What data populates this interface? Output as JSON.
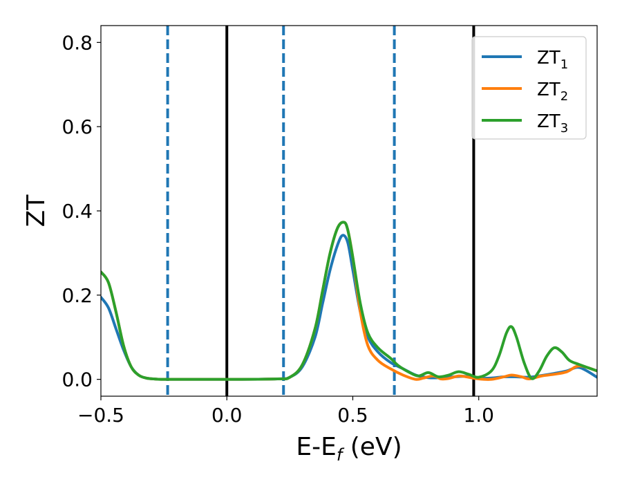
{
  "chart_data": {
    "type": "line",
    "xlabel": {
      "main": "E-E",
      "sub": "f",
      "unit": " (eV)"
    },
    "ylabel": "ZT",
    "xlim": [
      -0.5,
      1.47
    ],
    "ylim": [
      -0.04,
      0.84
    ],
    "x_ticks": [
      {
        "value": -0.5,
        "label": "−0.5"
      },
      {
        "value": 0.0,
        "label": "0.0"
      },
      {
        "value": 0.5,
        "label": "0.5"
      },
      {
        "value": 1.0,
        "label": "1.0"
      }
    ],
    "y_ticks": [
      {
        "value": 0.0,
        "label": "0.0"
      },
      {
        "value": 0.2,
        "label": "0.2"
      },
      {
        "value": 0.4,
        "label": "0.4"
      },
      {
        "value": 0.6,
        "label": "0.6"
      },
      {
        "value": 0.8,
        "label": "0.8"
      }
    ],
    "vlines": [
      {
        "x": -0.235,
        "color": "#1f77b4",
        "style": "dashed"
      },
      {
        "x": 0.0,
        "color": "#000000",
        "style": "solid"
      },
      {
        "x": 0.225,
        "color": "#1f77b4",
        "style": "dashed"
      },
      {
        "x": 0.665,
        "color": "#1f77b4",
        "style": "dashed"
      },
      {
        "x": 0.98,
        "color": "#000000",
        "style": "solid"
      }
    ],
    "legend_position": "top-right",
    "grid": false,
    "series": [
      {
        "name": "ZT",
        "sub": "1",
        "color": "#1f77b4",
        "x": [
          -0.5,
          -0.47,
          -0.44,
          -0.41,
          -0.38,
          -0.35,
          -0.32,
          -0.29,
          -0.26,
          -0.2,
          0.0,
          0.2,
          0.25,
          0.3,
          0.35,
          0.38,
          0.41,
          0.44,
          0.46,
          0.48,
          0.5,
          0.53,
          0.56,
          0.6,
          0.65,
          0.7,
          0.75,
          0.8,
          0.85,
          0.9,
          0.95,
          1.0,
          1.05,
          1.1,
          1.15,
          1.2,
          1.25,
          1.3,
          1.35,
          1.4,
          1.47
        ],
        "y": [
          0.195,
          0.17,
          0.12,
          0.07,
          0.03,
          0.01,
          0.003,
          0.001,
          0.0,
          0.0,
          0.0,
          0.001,
          0.005,
          0.03,
          0.1,
          0.18,
          0.26,
          0.32,
          0.342,
          0.325,
          0.26,
          0.16,
          0.1,
          0.065,
          0.04,
          0.025,
          0.01,
          0.004,
          0.004,
          0.006,
          0.007,
          0.003,
          0.003,
          0.006,
          0.006,
          0.005,
          0.009,
          0.014,
          0.02,
          0.028,
          0.005
        ]
      },
      {
        "name": "ZT",
        "sub": "2",
        "color": "#ff7f0e",
        "x": [
          -0.5,
          -0.47,
          -0.44,
          -0.41,
          -0.38,
          -0.35,
          -0.32,
          -0.29,
          -0.26,
          -0.2,
          0.0,
          0.2,
          0.25,
          0.3,
          0.35,
          0.38,
          0.41,
          0.44,
          0.465,
          0.48,
          0.5,
          0.53,
          0.56,
          0.6,
          0.65,
          0.7,
          0.75,
          0.78,
          0.82,
          0.85,
          0.88,
          0.92,
          0.95,
          1.0,
          1.05,
          1.1,
          1.13,
          1.17,
          1.2,
          1.25,
          1.3,
          1.35,
          1.4,
          1.47
        ],
        "y": [
          0.255,
          0.23,
          0.16,
          0.08,
          0.03,
          0.01,
          0.003,
          0.001,
          0.0,
          0.0,
          0.0,
          0.001,
          0.005,
          0.035,
          0.12,
          0.21,
          0.3,
          0.36,
          0.373,
          0.355,
          0.29,
          0.16,
          0.08,
          0.045,
          0.025,
          0.01,
          0.0,
          0.003,
          0.008,
          0.001,
          0.002,
          0.008,
          0.006,
          0.001,
          0.0,
          0.006,
          0.01,
          0.006,
          0.001,
          0.008,
          0.012,
          0.018,
          0.032,
          0.02
        ]
      },
      {
        "name": "ZT",
        "sub": "3",
        "color": "#2ca02c",
        "x": [
          -0.5,
          -0.47,
          -0.44,
          -0.41,
          -0.38,
          -0.35,
          -0.32,
          -0.29,
          -0.26,
          -0.2,
          0.0,
          0.2,
          0.25,
          0.3,
          0.35,
          0.38,
          0.41,
          0.44,
          0.465,
          0.48,
          0.5,
          0.53,
          0.56,
          0.6,
          0.65,
          0.68,
          0.72,
          0.76,
          0.8,
          0.84,
          0.88,
          0.92,
          0.96,
          1.0,
          1.05,
          1.08,
          1.11,
          1.13,
          1.15,
          1.18,
          1.21,
          1.24,
          1.27,
          1.3,
          1.33,
          1.36,
          1.4,
          1.47
        ],
        "y": [
          0.255,
          0.23,
          0.16,
          0.08,
          0.03,
          0.01,
          0.003,
          0.001,
          0.0,
          0.0,
          0.0,
          0.001,
          0.005,
          0.035,
          0.12,
          0.21,
          0.3,
          0.36,
          0.373,
          0.355,
          0.29,
          0.18,
          0.11,
          0.075,
          0.05,
          0.033,
          0.018,
          0.008,
          0.016,
          0.006,
          0.01,
          0.018,
          0.012,
          0.005,
          0.02,
          0.055,
          0.11,
          0.125,
          0.1,
          0.04,
          0.002,
          0.02,
          0.055,
          0.075,
          0.065,
          0.045,
          0.035,
          0.02
        ]
      }
    ]
  }
}
